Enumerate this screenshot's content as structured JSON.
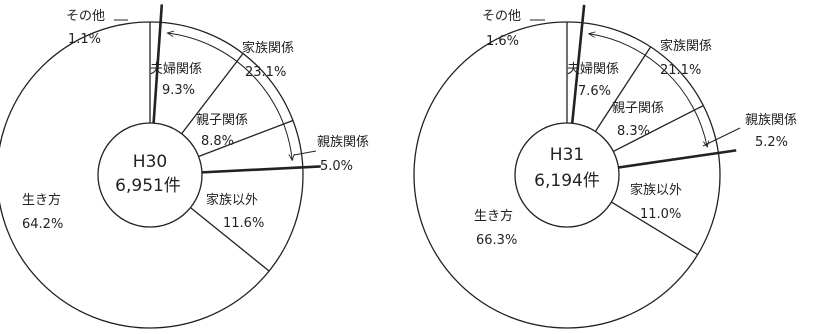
{
  "chart_data": [
    {
      "type": "pie",
      "center_label": "H30",
      "center_total": "6,951件",
      "slices": [
        {
          "name": "その他",
          "value": 1.1,
          "value_label": "1.1%"
        },
        {
          "name": "夫婦関係",
          "value": 9.3,
          "value_label": "9.3%"
        },
        {
          "name": "親子関係",
          "value": 8.8,
          "value_label": "8.8%"
        },
        {
          "name": "親族関係",
          "value": 5.0,
          "value_label": "5.0%"
        },
        {
          "name": "家族以外",
          "value": 11.6,
          "value_label": "11.6%"
        },
        {
          "name": "生き方",
          "value": 64.2,
          "value_label": "64.2%"
        }
      ],
      "group": {
        "name": "家族関係",
        "value": 23.1,
        "value_label": "23.1%"
      }
    },
    {
      "type": "pie",
      "center_label": "H31",
      "center_total": "6,194件",
      "slices": [
        {
          "name": "その他",
          "value": 1.6,
          "value_label": "1.6%"
        },
        {
          "name": "夫婦関係",
          "value": 7.6,
          "value_label": "7.6%"
        },
        {
          "name": "親子関係",
          "value": 8.3,
          "value_label": "8.3%"
        },
        {
          "name": "親族関係",
          "value": 5.2,
          "value_label": "5.2%"
        },
        {
          "name": "家族以外",
          "value": 11.0,
          "value_label": "11.0%"
        },
        {
          "name": "生き方",
          "value": 66.3,
          "value_label": "66.3%"
        }
      ],
      "group": {
        "name": "家族関係",
        "value": 21.1,
        "value_label": "21.1%"
      }
    }
  ]
}
